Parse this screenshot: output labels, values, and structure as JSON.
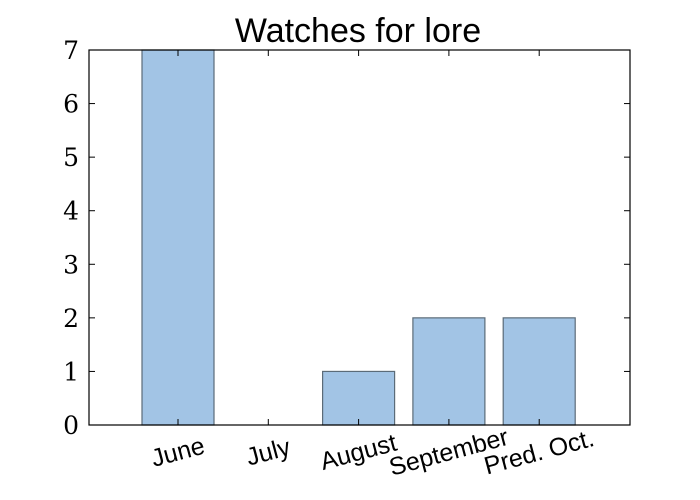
{
  "chart_data": {
    "type": "bar",
    "title": "Watches for lore",
    "xlabel": "",
    "ylabel": "",
    "categories": [
      "June",
      "July",
      "August",
      "September",
      "Pred. Oct."
    ],
    "values": [
      7,
      0,
      1,
      2,
      2
    ],
    "ylim": [
      0,
      7
    ],
    "yticks": [
      0,
      1,
      2,
      3,
      4,
      5,
      6,
      7
    ],
    "grid": false,
    "bar_color": "#a2c4e5",
    "bar_edge_color": "#5b6b78"
  }
}
